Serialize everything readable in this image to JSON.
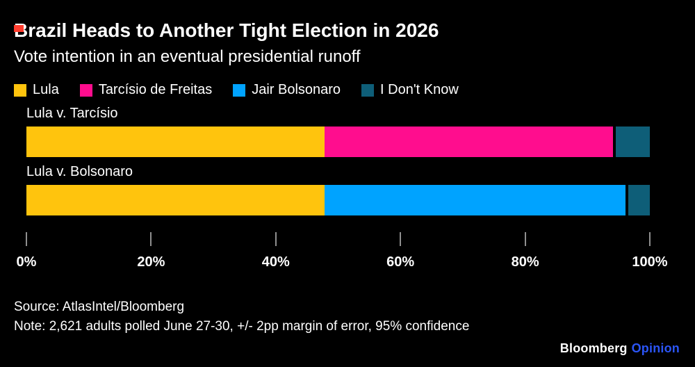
{
  "accent": {
    "red_mark": "#ff3d2e"
  },
  "header": {
    "title": "Brazil Heads to Another Tight Election in 2026",
    "subtitle": "Vote intention in an eventual presidential runoff"
  },
  "legend": [
    {
      "label": "Lula",
      "color": "#ffc40d"
    },
    {
      "label": "Tarcísio de Freitas",
      "color": "#ff0d8e"
    },
    {
      "label": "Jair Bolsonaro",
      "color": "#00a3ff"
    },
    {
      "label": "I Don't Know",
      "color": "#0e5e78"
    }
  ],
  "chart_data": {
    "type": "bar",
    "orientation": "horizontal",
    "stacked": true,
    "unit": "%",
    "grid": false,
    "legend_position": "top",
    "xlim": [
      0,
      100
    ],
    "x_tick_values": [
      0,
      20,
      40,
      60,
      80,
      100
    ],
    "x_tick_labels": [
      "0%",
      "20%",
      "40%",
      "60%",
      "80%",
      "100%"
    ],
    "categories": [
      "Lula v. Tarcísio",
      "Lula v. Bolsonaro"
    ],
    "series": [
      {
        "name": "Lula",
        "color": "#ffc40d",
        "values": [
          48,
          48
        ]
      },
      {
        "name": "Tarcísio de Freitas",
        "color": "#ff0d8e",
        "values": [
          46.5,
          null
        ]
      },
      {
        "name": "Jair Bolsonaro",
        "color": "#00a3ff",
        "values": [
          null,
          48.5
        ]
      },
      {
        "name": "I Don't Know",
        "color": "#0e5e78",
        "values": [
          5.5,
          3.5
        ]
      }
    ]
  },
  "footer": {
    "source": "Source: AtlasIntel/Bloomberg",
    "note": "Note: 2,621 adults polled June 27-30, +/- 2pp margin of error, 95% confidence",
    "brand": {
      "name": "Bloomberg",
      "suffix": "Opinion",
      "suffix_color": "#2b55f7"
    }
  }
}
